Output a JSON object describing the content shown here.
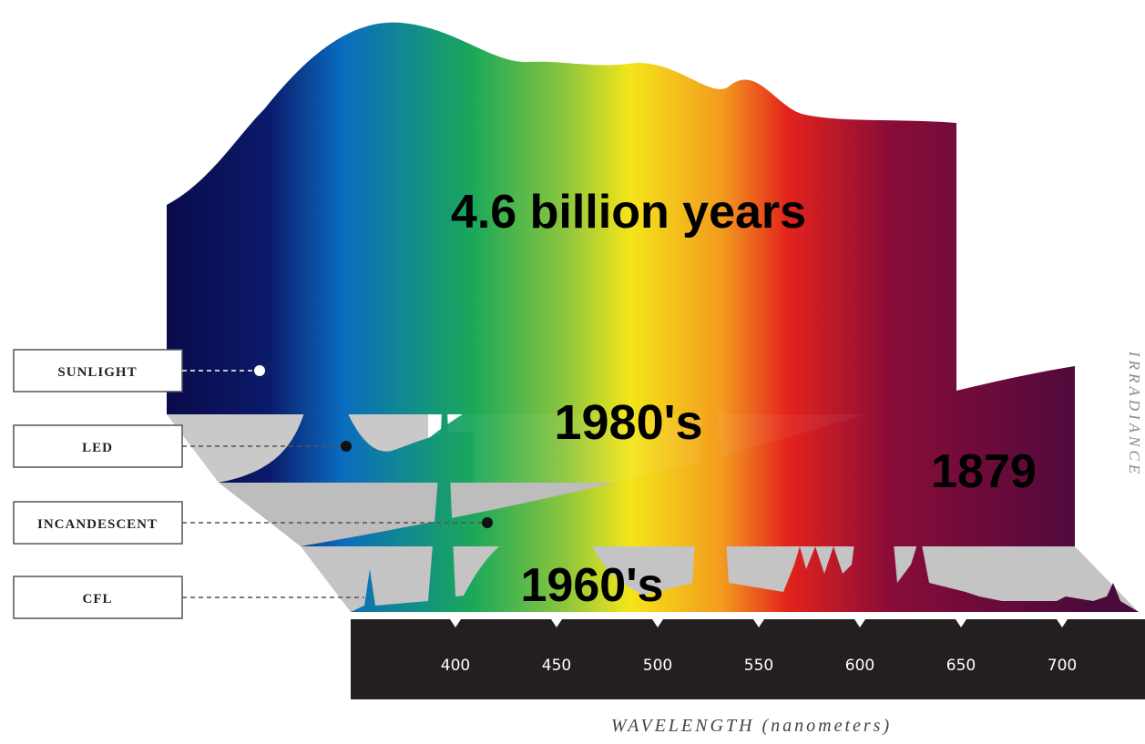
{
  "annotations": [
    "4.6 billion years",
    "1980's",
    "1879",
    "1960's"
  ],
  "sources": [
    {
      "label": "SUNLIGHT"
    },
    {
      "label": "LED"
    },
    {
      "label": "INCANDESCENT"
    },
    {
      "label": "CFL"
    }
  ],
  "axis": {
    "ticks": [
      400,
      450,
      500,
      550,
      600,
      650,
      700
    ],
    "label": "WAVELENGTH (nanometers)",
    "y_label": "IRRADIANCE"
  }
}
